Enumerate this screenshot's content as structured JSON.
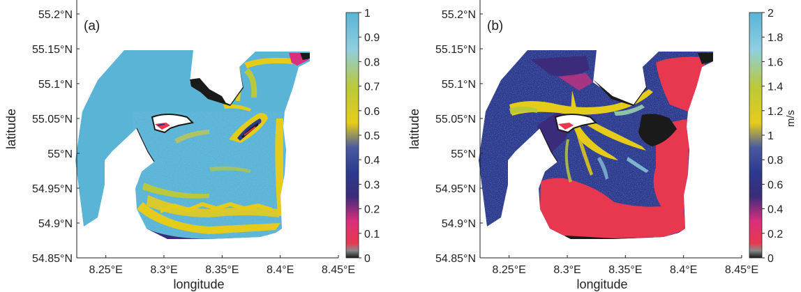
{
  "chart_data": [
    {
      "type": "heatmap",
      "panel_label": "(a)",
      "xlabel": "longitude",
      "ylabel": "latitude",
      "xlim": [
        8.225,
        8.45
      ],
      "ylim": [
        54.85,
        55.2
      ],
      "x_ticks": [
        "8.25°E",
        "8.3°E",
        "8.35°E",
        "8.4°E",
        "8.45°E"
      ],
      "y_ticks": [
        "55.2°N",
        "55.15°N",
        "55.1°N",
        "55.05°N",
        "55°N",
        "54.95°N",
        "54.9°N",
        "54.85°N"
      ],
      "colorbar": {
        "min": 0,
        "max": 1,
        "unit": "",
        "ticks": [
          "1",
          "0.9",
          "0.8",
          "0.7",
          "0.6",
          "0.5",
          "0.4",
          "0.3",
          "0.2",
          "0.1",
          "0"
        ],
        "colors": [
          "#1a1a1a",
          "#e8384f",
          "#d92f7d",
          "#3b2b7a",
          "#2b3a8e",
          "#4a5aa0",
          "#e6cc1a",
          "#b9c93b",
          "#8fc1a8",
          "#8fcfe0",
          "#5ab4d6"
        ]
      },
      "dominant_value": 1.0,
      "shoreline_value_range": [
        0.4,
        0.7
      ],
      "dry_value": 0.0
    },
    {
      "type": "heatmap",
      "panel_label": "(b)",
      "xlabel": "longitude",
      "ylabel": "latitude",
      "xlim": [
        8.225,
        8.45
      ],
      "ylim": [
        54.85,
        55.2
      ],
      "x_ticks": [
        "8.25°E",
        "8.3°E",
        "8.35°E",
        "8.4°E",
        "8.45°E"
      ],
      "y_ticks": [
        "55.2°N",
        "55.15°N",
        "55.1°N",
        "55.05°N",
        "55°N",
        "54.95°N",
        "54.9°N",
        "54.85°N"
      ],
      "colorbar": {
        "min": 0,
        "max": 2,
        "unit": "m/s",
        "ticks": [
          "2",
          "1.8",
          "1.6",
          "1.4",
          "1.2",
          "1",
          "0.8",
          "0.6",
          "0.4",
          "0.2",
          "0"
        ],
        "colors": [
          "#1a1a1a",
          "#e8384f",
          "#d92f7d",
          "#3b2b7a",
          "#2b3a8e",
          "#4a5aa0",
          "#e6cc1a",
          "#b9c93b",
          "#8fc1a8",
          "#8fcfe0",
          "#5ab4d6"
        ]
      },
      "channel_value_range": [
        1.0,
        1.4
      ],
      "basin_value_range": [
        0.3,
        0.6
      ],
      "flat_value_range": [
        0.1,
        0.2
      ]
    }
  ]
}
